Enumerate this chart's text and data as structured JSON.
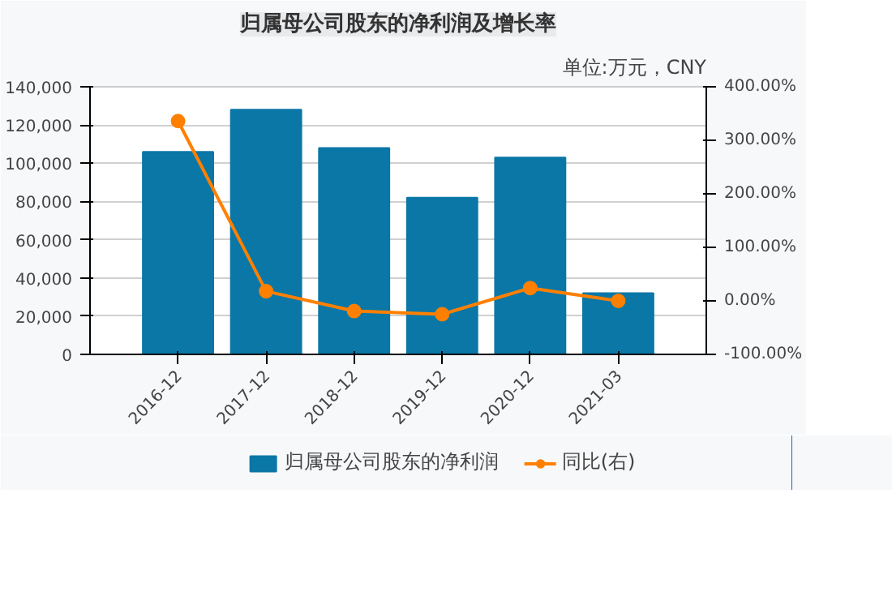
{
  "chart_data": {
    "type": "bar",
    "title": "归属母公司股东的净利润及增长率",
    "annotations": [
      "单位:万元，CNY"
    ],
    "categories": [
      "2016-12",
      "2017-12",
      "2018-12",
      "2019-12",
      "2020-12",
      "2021-03"
    ],
    "series": [
      {
        "name": "归属母公司股东的净利润",
        "color": "#0a77a6",
        "values": [
          106000,
          128000,
          108000,
          82000,
          103000,
          32000
        ]
      },
      {
        "name": "同比(右)",
        "type": "line",
        "axis": "y2",
        "color": "#ff8000",
        "values": [
          336,
          18,
          -19,
          -25,
          24,
          0
        ]
      }
    ],
    "ylim": [
      0,
      140000
    ],
    "yticks": [
      {
        "value": 0,
        "label": "0"
      },
      {
        "value": 20000,
        "label": "20,000"
      },
      {
        "value": 40000,
        "label": "40,000"
      },
      {
        "value": 60000,
        "label": "60,000"
      },
      {
        "value": 80000,
        "label": "80,000"
      },
      {
        "value": 100000,
        "label": "100,000"
      },
      {
        "value": 120000,
        "label": "120,000"
      },
      {
        "value": 140000,
        "label": "140,000"
      }
    ],
    "y2lim": [
      -100,
      400
    ],
    "y2ticks": [
      {
        "value": -100,
        "label": "-100.00%"
      },
      {
        "value": 0,
        "label": "0.00%"
      },
      {
        "value": 100,
        "label": "100.00%"
      },
      {
        "value": 200,
        "label": "200.00%"
      },
      {
        "value": 300,
        "label": "300.00%"
      },
      {
        "value": 400,
        "label": "400.00%"
      }
    ],
    "grid": "y",
    "legend": "bottom",
    "marker": "circle"
  }
}
